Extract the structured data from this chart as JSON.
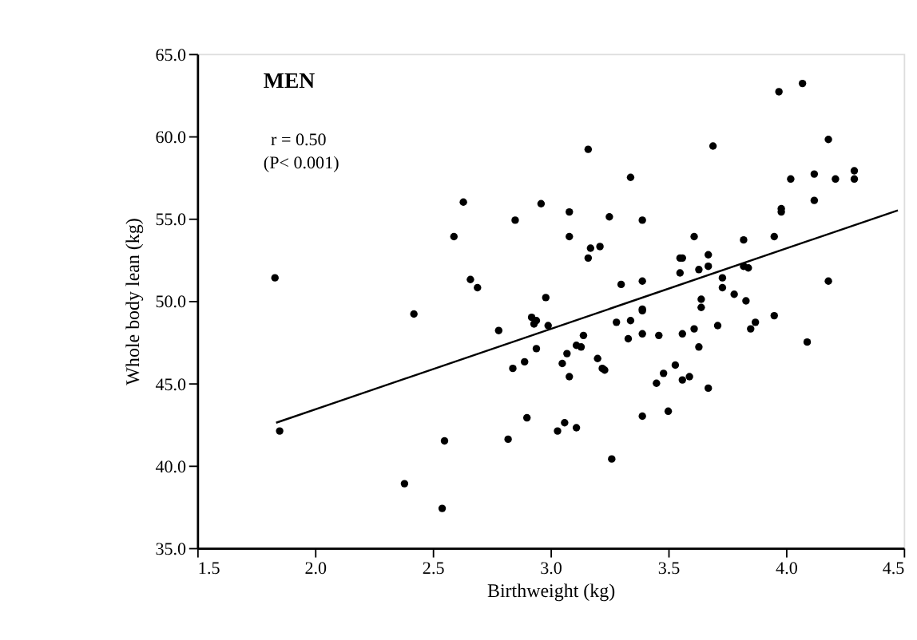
{
  "chart_data": {
    "type": "scatter",
    "xlabel": "Birthweight (kg)",
    "ylabel": "Whole body lean (kg)",
    "annotations": [
      "MEN",
      "r = 0.50",
      "(P< 0.001)"
    ],
    "xlim": [
      1.5,
      4.5
    ],
    "ylim": [
      35,
      65
    ],
    "xticks": [
      1.5,
      {
        "value": 2,
        "label": "2.0"
      },
      2.5,
      {
        "value": 3,
        "label": "3.0"
      },
      3.5,
      {
        "value": 4,
        "label": "4.0"
      },
      4.5
    ],
    "yticks": [
      {
        "value": 35,
        "label": "35.0"
      },
      {
        "value": 40,
        "label": "40.0"
      },
      {
        "value": 45,
        "label": "45.0"
      },
      {
        "value": 50,
        "label": "50.0"
      },
      {
        "value": 55,
        "label": "55.0"
      },
      {
        "value": 60,
        "label": "60.0"
      },
      {
        "value": 65,
        "label": "65.0"
      }
    ],
    "series": [
      {
        "marker": "circle",
        "color": "#000000",
        "x": [
          1.83,
          1.85,
          2.38,
          2.42,
          2.54,
          2.55,
          2.59,
          2.63,
          2.66,
          2.69,
          2.78,
          2.82,
          2.84,
          2.85,
          2.89,
          2.9,
          2.92,
          2.93,
          2.94,
          2.94,
          2.96,
          2.98,
          2.99,
          3.03,
          3.05,
          3.06,
          3.07,
          3.08,
          3.08,
          3.08,
          3.11,
          3.11,
          3.13,
          3.14,
          3.16,
          3.16,
          3.17,
          3.2,
          3.21,
          3.22,
          3.23,
          3.25,
          3.26,
          3.28,
          3.3,
          3.33,
          3.34,
          3.34,
          3.39,
          3.39,
          3.39,
          3.39,
          3.39,
          3.39,
          3.45,
          3.46,
          3.48,
          3.5,
          3.53,
          3.55,
          3.55,
          3.56,
          3.56,
          3.56,
          3.59,
          3.61,
          3.61,
          3.63,
          3.63,
          3.64,
          3.64,
          3.67,
          3.67,
          3.67,
          3.69,
          3.71,
          3.73,
          3.73,
          3.78,
          3.82,
          3.82,
          3.83,
          3.84,
          3.85,
          3.87,
          3.95,
          3.95,
          3.97,
          3.98,
          3.98,
          4.02,
          4.07,
          4.09,
          4.12,
          4.12,
          4.18,
          4.18,
          4.21,
          4.29,
          4.29
        ],
        "values": [
          51.4,
          42.1,
          38.9,
          49.2,
          37.4,
          41.5,
          53.9,
          56.0,
          51.3,
          50.8,
          48.2,
          41.6,
          45.9,
          54.9,
          46.3,
          42.9,
          49.0,
          48.6,
          48.8,
          47.1,
          55.9,
          50.2,
          48.5,
          42.1,
          46.2,
          42.6,
          46.8,
          45.4,
          55.4,
          53.9,
          47.3,
          42.3,
          47.2,
          47.9,
          59.2,
          52.6,
          53.2,
          46.5,
          53.3,
          45.9,
          45.8,
          55.1,
          40.4,
          48.7,
          51.0,
          47.7,
          48.8,
          57.5,
          51.2,
          49.5,
          49.4,
          48.0,
          43.0,
          54.9,
          45.0,
          47.9,
          45.6,
          43.3,
          46.1,
          52.6,
          51.7,
          48.0,
          45.2,
          52.6,
          45.4,
          48.3,
          53.9,
          51.9,
          47.2,
          50.1,
          49.6,
          52.1,
          52.8,
          44.7,
          59.4,
          48.5,
          51.4,
          50.8,
          50.4,
          52.1,
          53.7,
          50.0,
          52.0,
          48.3,
          48.7,
          49.1,
          53.9,
          62.7,
          55.6,
          55.4,
          57.4,
          63.2,
          47.5,
          56.1,
          57.7,
          59.8,
          51.2,
          57.4,
          57.9,
          57.4
        ]
      },
      {
        "type": "line",
        "color": "#000000",
        "line_style": "solid",
        "x": [
          1.835,
          4.475
        ],
        "values": [
          42.6,
          55.5
        ]
      }
    ]
  }
}
